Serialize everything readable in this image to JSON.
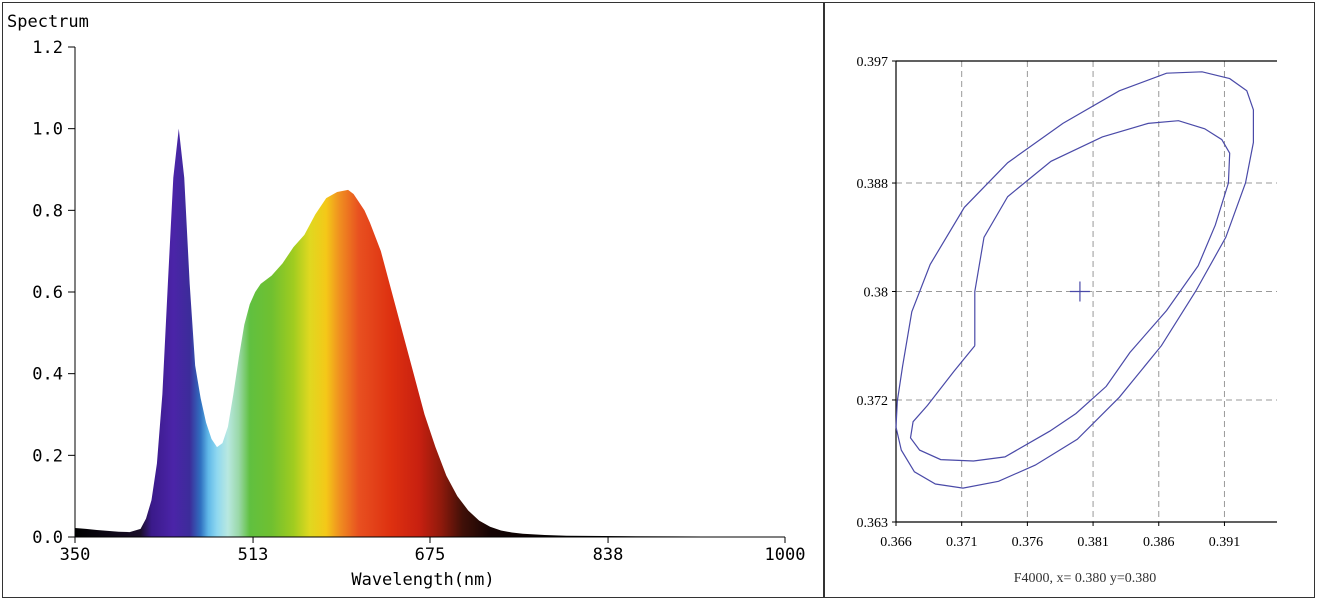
{
  "chart_data": [
    {
      "type": "area",
      "title": "Spectrum",
      "xlabel": "Wavelength(nm)",
      "ylabel": "",
      "xlim": [
        350,
        1000
      ],
      "ylim": [
        0,
        1.2
      ],
      "xticks": [
        "350",
        "513",
        "675",
        "838",
        "1000"
      ],
      "yticks": [
        "0.0",
        "0.2",
        "0.4",
        "0.6",
        "0.8",
        "1.0",
        "1.2"
      ],
      "grid": false,
      "fill": "wavelength-colored",
      "series": [
        {
          "x": [
            350,
            360,
            370,
            380,
            390,
            400,
            410,
            415,
            420,
            425,
            430,
            435,
            440,
            445,
            450,
            455,
            460,
            465,
            470,
            475,
            480,
            485,
            490,
            495,
            500,
            505,
            510,
            515,
            520,
            525,
            530,
            540,
            550,
            560,
            570,
            580,
            590,
            600,
            605,
            610,
            615,
            620,
            630,
            640,
            650,
            660,
            670,
            680,
            690,
            700,
            710,
            720,
            730,
            740,
            750,
            760,
            780,
            800,
            850,
            900,
            950,
            1000
          ],
          "y": [
            0.022,
            0.02,
            0.017,
            0.015,
            0.013,
            0.012,
            0.02,
            0.045,
            0.09,
            0.18,
            0.35,
            0.62,
            0.88,
            1.0,
            0.88,
            0.62,
            0.42,
            0.34,
            0.28,
            0.24,
            0.22,
            0.23,
            0.27,
            0.35,
            0.44,
            0.52,
            0.57,
            0.6,
            0.62,
            0.63,
            0.64,
            0.67,
            0.71,
            0.74,
            0.79,
            0.83,
            0.845,
            0.85,
            0.84,
            0.82,
            0.8,
            0.77,
            0.7,
            0.6,
            0.5,
            0.4,
            0.3,
            0.22,
            0.15,
            0.1,
            0.065,
            0.04,
            0.025,
            0.016,
            0.011,
            0.008,
            0.005,
            0.003,
            0.002,
            0.0015,
            0.001,
            0.001
          ]
        }
      ]
    },
    {
      "type": "scatter",
      "title": "",
      "xlabel": "",
      "ylabel": "",
      "xlim": [
        0.366,
        0.395
      ],
      "ylim": [
        0.363,
        0.397
      ],
      "xticks": [
        "0.366",
        "0.371",
        "0.376",
        "0.381",
        "0.386",
        "0.391"
      ],
      "yticks": [
        "0.363",
        "0.372",
        "0.38",
        "0.388",
        "0.397"
      ],
      "grid": true,
      "line_color": "#4a4aa8",
      "caption": "F4000,  x= 0.380 y=0.380",
      "center": {
        "x": 0.38,
        "y": 0.38
      },
      "ellipses": [
        {
          "name": "",
          "points": [
            [
              0.372,
              0.376
            ],
            [
              0.3704,
              0.3741
            ],
            [
              0.3684,
              0.3716
            ],
            [
              0.3673,
              0.3704
            ],
            [
              0.3671,
              0.3692
            ],
            [
              0.3678,
              0.3683
            ],
            [
              0.3694,
              0.3676
            ],
            [
              0.3719,
              0.3675
            ],
            [
              0.3743,
              0.3678
            ],
            [
              0.3777,
              0.3697
            ],
            [
              0.3797,
              0.371
            ],
            [
              0.382,
              0.373
            ],
            [
              0.3838,
              0.3755
            ],
            [
              0.3866,
              0.3786
            ],
            [
              0.389,
              0.3819
            ],
            [
              0.3903,
              0.3849
            ],
            [
              0.3913,
              0.388
            ],
            [
              0.3914,
              0.3902
            ],
            [
              0.3908,
              0.3912
            ],
            [
              0.3895,
              0.392
            ],
            [
              0.3875,
              0.3926
            ],
            [
              0.3852,
              0.3924
            ],
            [
              0.3817,
              0.3914
            ],
            [
              0.3778,
              0.3896
            ],
            [
              0.3745,
              0.387
            ],
            [
              0.3727,
              0.384
            ],
            [
              0.372,
              0.38
            ],
            [
              0.372,
              0.376
            ]
          ]
        },
        {
          "name": "",
          "points": [
            [
              0.3665,
              0.3745
            ],
            [
              0.3661,
              0.3719
            ],
            [
              0.366,
              0.37
            ],
            [
              0.3664,
              0.3683
            ],
            [
              0.3674,
              0.3667
            ],
            [
              0.369,
              0.3658
            ],
            [
              0.3711,
              0.3655
            ],
            [
              0.3738,
              0.366
            ],
            [
              0.3766,
              0.3672
            ],
            [
              0.3798,
              0.3691
            ],
            [
              0.383,
              0.3722
            ],
            [
              0.3862,
              0.376
            ],
            [
              0.3888,
              0.38
            ],
            [
              0.3911,
              0.384
            ],
            [
              0.3926,
              0.388
            ],
            [
              0.3932,
              0.391
            ],
            [
              0.3932,
              0.3934
            ],
            [
              0.3927,
              0.3948
            ],
            [
              0.3914,
              0.3957
            ],
            [
              0.3893,
              0.3962
            ],
            [
              0.3866,
              0.3961
            ],
            [
              0.383,
              0.3948
            ],
            [
              0.3787,
              0.3924
            ],
            [
              0.3745,
              0.3895
            ],
            [
              0.3712,
              0.3862
            ],
            [
              0.3686,
              0.382
            ],
            [
              0.3672,
              0.3785
            ],
            [
              0.3665,
              0.3745
            ]
          ]
        }
      ]
    }
  ]
}
